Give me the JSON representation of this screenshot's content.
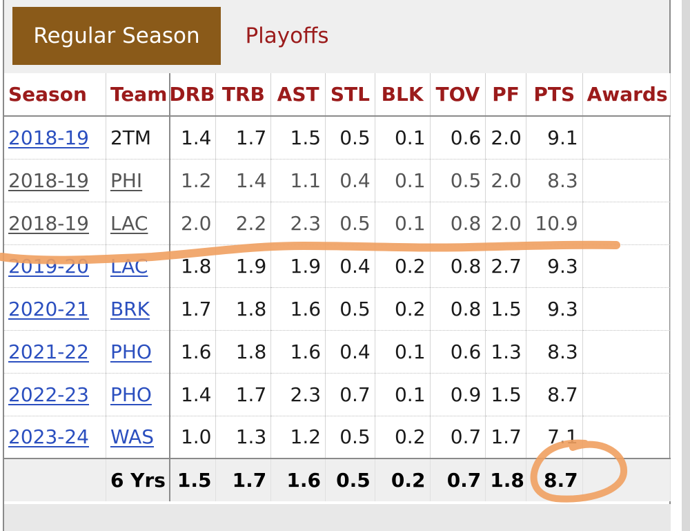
{
  "tabs": [
    {
      "label": "Regular Season",
      "active": true
    },
    {
      "label": "Playoffs",
      "active": false
    }
  ],
  "columns": [
    "Season",
    "Team",
    "DRB",
    "TRB",
    "AST",
    "STL",
    "BLK",
    "TOV",
    "PF",
    "PTS",
    "Awards"
  ],
  "rows": [
    {
      "season": "2018-19",
      "team": "2TM",
      "drb": "1.4",
      "trb": "1.7",
      "ast": "1.5",
      "stl": "0.5",
      "blk": "0.1",
      "tov": "0.6",
      "pf": "2.0",
      "pts": "9.1",
      "awards": ""
    },
    {
      "season": "2018-19",
      "team": "PHI",
      "drb": "1.2",
      "trb": "1.4",
      "ast": "1.1",
      "stl": "0.4",
      "blk": "0.1",
      "tov": "0.5",
      "pf": "2.0",
      "pts": "8.3",
      "awards": ""
    },
    {
      "season": "2018-19",
      "team": "LAC",
      "drb": "2.0",
      "trb": "2.2",
      "ast": "2.3",
      "stl": "0.5",
      "blk": "0.1",
      "tov": "0.8",
      "pf": "2.0",
      "pts": "10.9",
      "awards": ""
    },
    {
      "season": "2019-20",
      "team": "LAC",
      "drb": "1.8",
      "trb": "1.9",
      "ast": "1.9",
      "stl": "0.4",
      "blk": "0.2",
      "tov": "0.8",
      "pf": "2.7",
      "pts": "9.3",
      "awards": ""
    },
    {
      "season": "2020-21",
      "team": "BRK",
      "drb": "1.7",
      "trb": "1.8",
      "ast": "1.6",
      "stl": "0.5",
      "blk": "0.2",
      "tov": "0.8",
      "pf": "1.5",
      "pts": "9.3",
      "awards": ""
    },
    {
      "season": "2021-22",
      "team": "PHO",
      "drb": "1.6",
      "trb": "1.8",
      "ast": "1.6",
      "stl": "0.4",
      "blk": "0.1",
      "tov": "0.6",
      "pf": "1.3",
      "pts": "8.3",
      "awards": ""
    },
    {
      "season": "2022-23",
      "team": "PHO",
      "drb": "1.4",
      "trb": "1.7",
      "ast": "2.3",
      "stl": "0.7",
      "blk": "0.1",
      "tov": "0.9",
      "pf": "1.5",
      "pts": "8.7",
      "awards": ""
    },
    {
      "season": "2023-24",
      "team": "WAS",
      "drb": "1.0",
      "trb": "1.3",
      "ast": "1.2",
      "stl": "0.5",
      "blk": "0.2",
      "tov": "0.7",
      "pf": "1.7",
      "pts": "7.1",
      "awards": ""
    }
  ],
  "totals": {
    "label": "6 Yrs",
    "drb": "1.5",
    "trb": "1.7",
    "ast": "1.6",
    "stl": "0.5",
    "blk": "0.2",
    "tov": "0.7",
    "pf": "1.8",
    "pts": "8.7",
    "awards": ""
  },
  "colors": {
    "tab_active_bg": "#8a5a19",
    "header_text": "#9b1b1b",
    "link": "#2b4fbf",
    "annotation": "#f0a060"
  }
}
